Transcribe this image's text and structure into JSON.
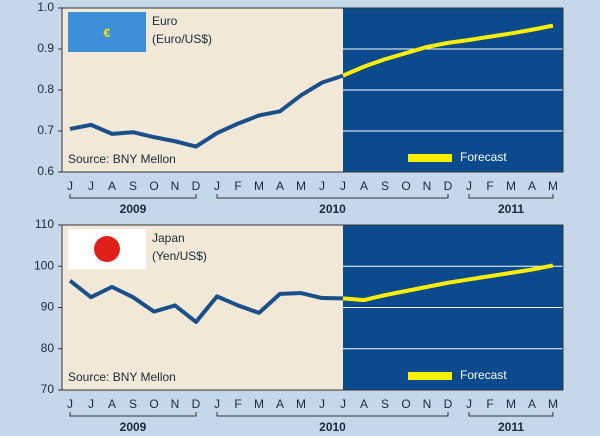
{
  "chart_data": [
    {
      "type": "line",
      "title": "Euro",
      "subtitle": "(Euro/US$)",
      "icon": "€",
      "source": "Source: BNY Mellon",
      "categories": [
        "J",
        "J",
        "A",
        "S",
        "O",
        "N",
        "D",
        "J",
        "F",
        "M",
        "A",
        "M",
        "J",
        "J",
        "A",
        "S",
        "O",
        "N",
        "D",
        "J",
        "F",
        "M",
        "A",
        "M"
      ],
      "x_groups": [
        {
          "label": "2009",
          "count": 7
        },
        {
          "label": "2010",
          "count": 12
        },
        {
          "label": "2011",
          "count": 5
        }
      ],
      "series": [
        {
          "color": "#1a4f8a",
          "values": [
            0.705,
            0.715,
            0.693,
            0.697,
            0.685,
            0.675,
            0.662,
            0.695,
            0.718,
            0.738,
            0.748,
            0.787,
            0.818,
            0.835,
            null,
            null,
            null,
            null,
            null,
            null,
            null,
            null,
            null,
            null
          ]
        },
        {
          "name": "Forecast",
          "color": "#ffee00",
          "values": [
            null,
            null,
            null,
            null,
            null,
            null,
            null,
            null,
            null,
            null,
            null,
            null,
            null,
            0.835,
            0.857,
            0.875,
            0.89,
            0.905,
            0.915,
            0.922,
            0.93,
            0.938,
            0.947,
            0.957
          ]
        }
      ],
      "ylim": [
        0.6,
        1
      ],
      "yticks": [
        0.6,
        0.7,
        0.8,
        0.9,
        {
          "value": 1,
          "label": "1.0"
        }
      ],
      "grid": true
    },
    {
      "type": "line",
      "title": "Japan",
      "subtitle": "(Yen/US$)",
      "source": "Source: BNY Mellon",
      "categories": [
        "J",
        "J",
        "A",
        "S",
        "O",
        "N",
        "D",
        "J",
        "F",
        "M",
        "A",
        "M",
        "J",
        "J",
        "A",
        "S",
        "O",
        "N",
        "D",
        "J",
        "F",
        "M",
        "A",
        "M"
      ],
      "x_groups": [
        {
          "label": "2009",
          "count": 7
        },
        {
          "label": "2010",
          "count": 12
        },
        {
          "label": "2011",
          "count": 5
        }
      ],
      "series": [
        {
          "color": "#1a4f8a",
          "values": [
            96.5,
            92.5,
            95,
            92.5,
            89,
            90.5,
            86.5,
            92.7,
            90.5,
            88.7,
            93.3,
            93.5,
            92.3,
            92.2,
            null,
            null,
            null,
            null,
            null,
            null,
            null,
            null,
            null,
            null
          ]
        },
        {
          "name": "Forecast",
          "color": "#ffee00",
          "values": [
            null,
            null,
            null,
            null,
            null,
            null,
            null,
            null,
            null,
            null,
            null,
            null,
            null,
            92.2,
            91.8,
            93,
            94,
            95,
            96,
            96.8,
            97.6,
            98.4,
            99.2,
            100.2
          ]
        }
      ],
      "ylim": [
        70,
        110
      ],
      "yticks": [
        70,
        80,
        90,
        100,
        110
      ],
      "grid": true
    }
  ]
}
